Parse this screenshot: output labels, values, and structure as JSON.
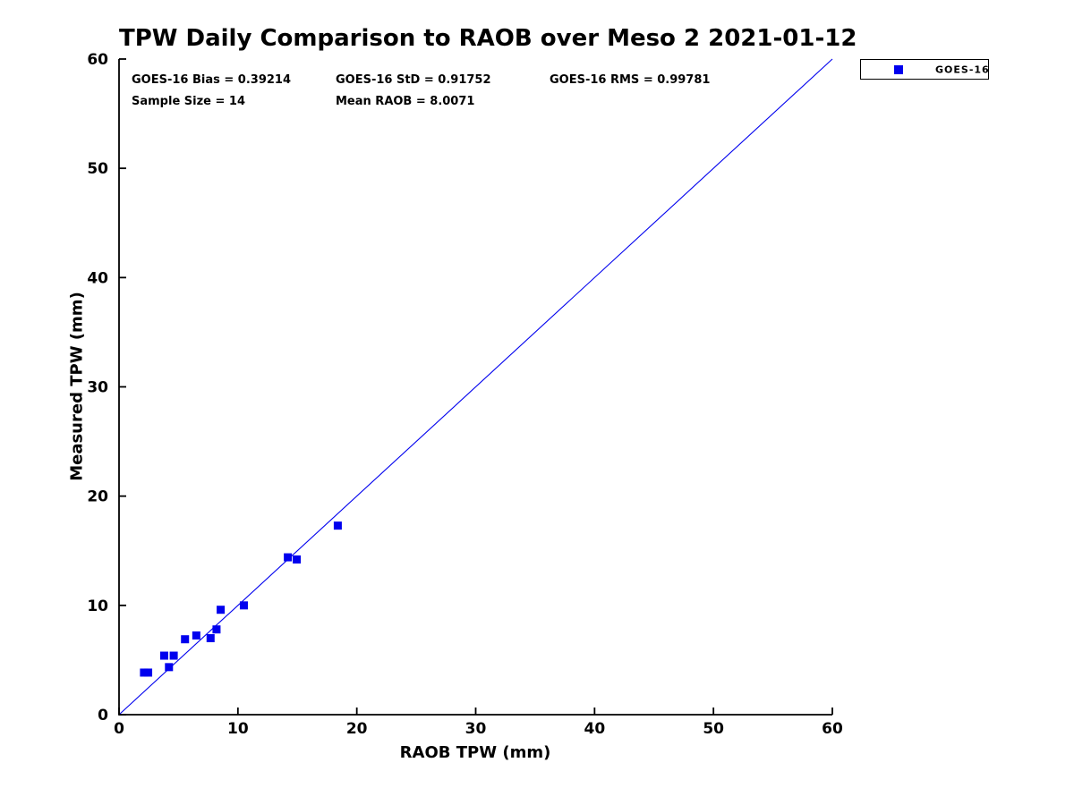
{
  "annotations": {
    "bias": "GOES-16 Bias = 0.39214",
    "std": "GOES-16 StD = 0.91752",
    "rms": "GOES-16 RMS = 0.99781",
    "sample_size": "Sample Size = 14",
    "mean_raob": "Mean RAOB = 8.0071"
  },
  "legend": {
    "position": "top-right-outside",
    "entries": [
      {
        "label": "GOES-16",
        "marker": "filled-square",
        "color": "#0000ee"
      }
    ]
  },
  "chart_data": {
    "type": "scatter",
    "title": "TPW Daily Comparison to RAOB over Meso 2 2021-01-12",
    "xlabel": "RAOB TPW (mm)",
    "ylabel": "Measured TPW (mm)",
    "xlim": [
      0,
      60
    ],
    "ylim": [
      0,
      60
    ],
    "xticks": [
      0,
      10,
      20,
      30,
      40,
      50,
      60
    ],
    "yticks": [
      0,
      10,
      20,
      30,
      40,
      50,
      60
    ],
    "grid": false,
    "axis_color": "#000000",
    "series": [
      {
        "name": "GOES-16",
        "marker": "square",
        "marker_size": 9,
        "color": "#0000ee",
        "points": [
          [
            2.1,
            3.85
          ],
          [
            2.45,
            3.85
          ],
          [
            3.8,
            5.4
          ],
          [
            4.2,
            4.35
          ],
          [
            4.6,
            5.4
          ],
          [
            5.55,
            6.9
          ],
          [
            6.5,
            7.25
          ],
          [
            7.7,
            7.0
          ],
          [
            8.2,
            7.8
          ],
          [
            8.55,
            9.6
          ],
          [
            10.5,
            10.0
          ],
          [
            14.2,
            14.4
          ],
          [
            14.95,
            14.2
          ],
          [
            18.4,
            17.3
          ]
        ]
      }
    ],
    "reference_line": {
      "from": [
        0,
        0
      ],
      "to": [
        60,
        60
      ],
      "color": "#0000ee",
      "width": 1.1
    },
    "stats": {
      "bias": 0.39214,
      "std": 0.91752,
      "rms": 0.99781,
      "sample_size": 14,
      "mean_raob": 8.0071
    }
  }
}
